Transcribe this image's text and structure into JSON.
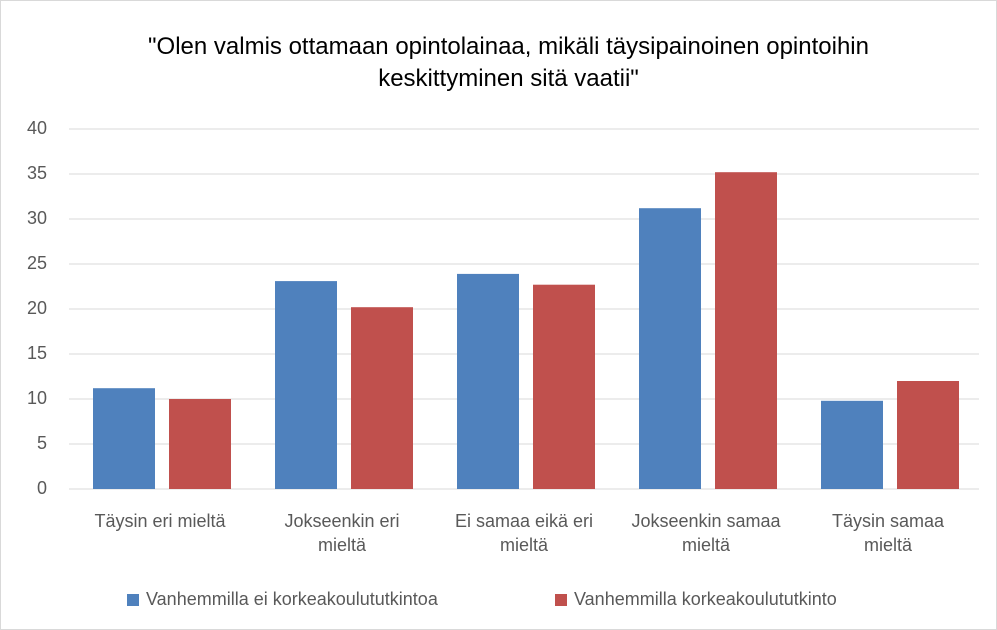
{
  "chart_data": {
    "type": "bar",
    "title": "\"Olen valmis ottamaan opintolainaa, mikäli täysipainoinen opintoihin keskittyminen sitä vaatii\"",
    "categories": [
      "Täysin eri mieltä",
      "Jokseenkin eri mieltä",
      "Ei samaa eikä eri mieltä",
      "Jokseenkin samaa mieltä",
      "Täysin samaa mieltä"
    ],
    "series": [
      {
        "name": "Vanhemmilla ei korkeakoulututkintoa",
        "color": "#4f81bd",
        "values": [
          11.2,
          23.1,
          23.9,
          31.2,
          9.8
        ]
      },
      {
        "name": "Vanhemmilla korkeakoulututkinto",
        "color": "#c0504d",
        "values": [
          10.0,
          20.2,
          22.7,
          35.2,
          12.0
        ]
      }
    ],
    "ylim": [
      0,
      40
    ],
    "yticks": [
      0,
      5,
      10,
      15,
      20,
      25,
      30,
      35,
      40
    ],
    "grid": true,
    "legend": "bottom"
  }
}
